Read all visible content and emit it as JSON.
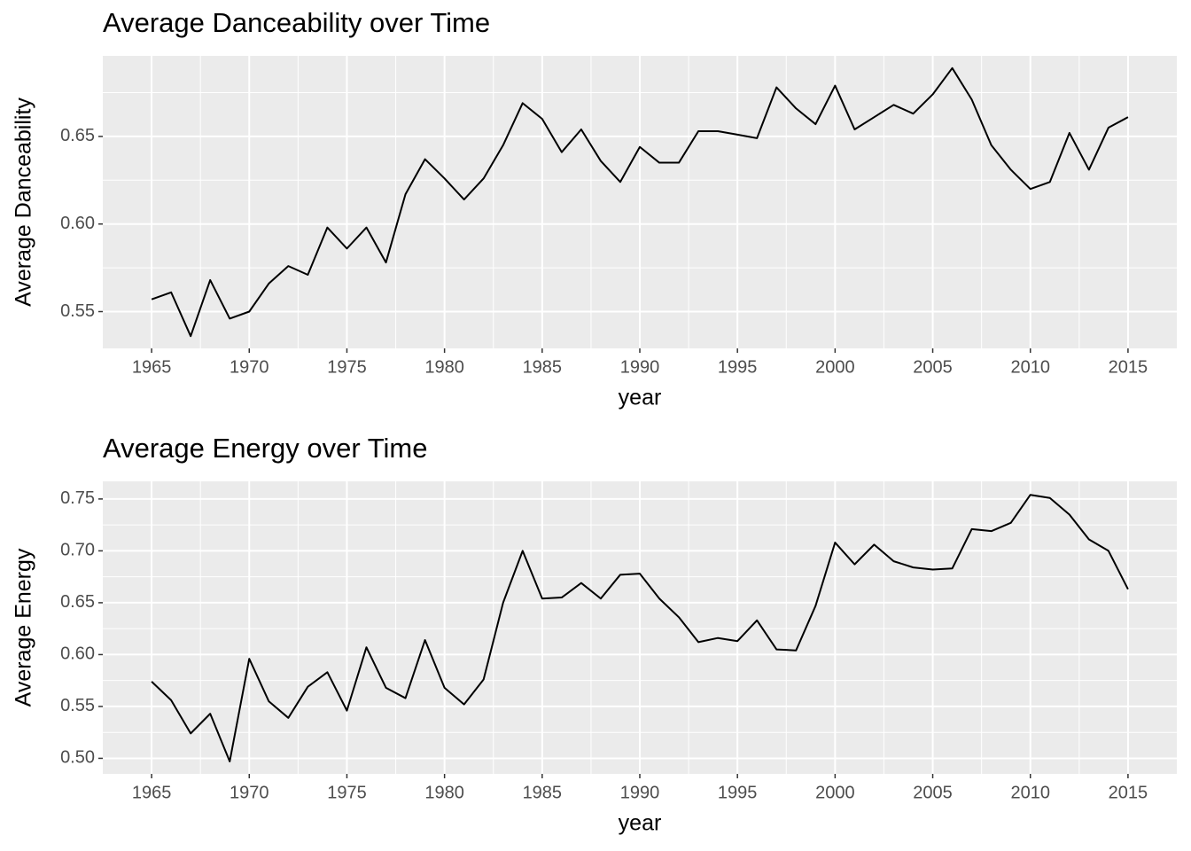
{
  "chart_data": [
    {
      "type": "line",
      "title": "Average Danceability over Time",
      "x_label": "year",
      "y_label": "Average Danceability",
      "x": [
        1965,
        1966,
        1967,
        1968,
        1969,
        1970,
        1971,
        1972,
        1973,
        1974,
        1975,
        1976,
        1977,
        1978,
        1979,
        1980,
        1981,
        1982,
        1983,
        1984,
        1985,
        1986,
        1987,
        1988,
        1989,
        1990,
        1991,
        1992,
        1993,
        1994,
        1995,
        1996,
        1997,
        1998,
        1999,
        2000,
        2001,
        2002,
        2003,
        2004,
        2005,
        2006,
        2007,
        2008,
        2009,
        2010,
        2011,
        2012,
        2013,
        2014,
        2015
      ],
      "values": [
        0.557,
        0.561,
        0.536,
        0.568,
        0.546,
        0.55,
        0.566,
        0.576,
        0.571,
        0.598,
        0.586,
        0.598,
        0.578,
        0.617,
        0.637,
        0.626,
        0.614,
        0.626,
        0.645,
        0.669,
        0.66,
        0.641,
        0.654,
        0.636,
        0.624,
        0.644,
        0.635,
        0.635,
        0.653,
        0.653,
        0.651,
        0.649,
        0.678,
        0.666,
        0.657,
        0.679,
        0.654,
        0.661,
        0.668,
        0.663,
        0.674,
        0.689,
        0.671,
        0.645,
        0.631,
        0.62,
        0.624,
        0.652,
        0.631,
        0.655,
        0.661
      ],
      "color": "#000000",
      "background": "#ebebeb",
      "grid": true,
      "xlim": [
        1962.5,
        2017.5
      ],
      "xticks": [
        1965,
        1970,
        1975,
        1980,
        1985,
        1990,
        1995,
        2000,
        2005,
        2010,
        2015
      ],
      "ylim": [
        0.529,
        0.696
      ],
      "yticks": [
        0.55,
        {
          "value": 0.6,
          "label": "0.60"
        },
        0.65
      ]
    },
    {
      "type": "line",
      "title": "Average Energy over Time",
      "x_label": "year",
      "y_label": "Average Energy",
      "x": [
        1965,
        1966,
        1967,
        1968,
        1969,
        1970,
        1971,
        1972,
        1973,
        1974,
        1975,
        1976,
        1977,
        1978,
        1979,
        1980,
        1981,
        1982,
        1983,
        1984,
        1985,
        1986,
        1987,
        1988,
        1989,
        1990,
        1991,
        1992,
        1993,
        1994,
        1995,
        1996,
        1997,
        1998,
        1999,
        2000,
        2001,
        2002,
        2003,
        2004,
        2005,
        2006,
        2007,
        2008,
        2009,
        2010,
        2011,
        2012,
        2013,
        2014,
        2015
      ],
      "values": [
        0.574,
        0.556,
        0.524,
        0.543,
        0.497,
        0.596,
        0.555,
        0.539,
        0.569,
        0.583,
        0.546,
        0.607,
        0.568,
        0.558,
        0.614,
        0.568,
        0.552,
        0.576,
        0.65,
        0.7,
        0.654,
        0.655,
        0.669,
        0.654,
        0.677,
        0.678,
        0.654,
        0.636,
        0.612,
        0.616,
        0.613,
        0.633,
        0.605,
        0.604,
        0.647,
        0.708,
        0.687,
        0.706,
        0.69,
        0.684,
        0.682,
        0.683,
        0.721,
        0.719,
        0.727,
        0.754,
        0.751,
        0.735,
        0.711,
        0.7,
        0.663
      ],
      "color": "#000000",
      "background": "#ebebeb",
      "grid": true,
      "xlim": [
        1962.5,
        2017.5
      ],
      "xticks": [
        1965,
        1970,
        1975,
        1980,
        1985,
        1990,
        1995,
        2000,
        2005,
        2010,
        2015
      ],
      "ylim": [
        0.485,
        0.767
      ],
      "yticks": [
        {
          "value": 0.5,
          "label": "0.50"
        },
        0.55,
        {
          "value": 0.6,
          "label": "0.60"
        },
        0.65,
        {
          "value": 0.7,
          "label": "0.70"
        },
        0.75
      ]
    }
  ]
}
